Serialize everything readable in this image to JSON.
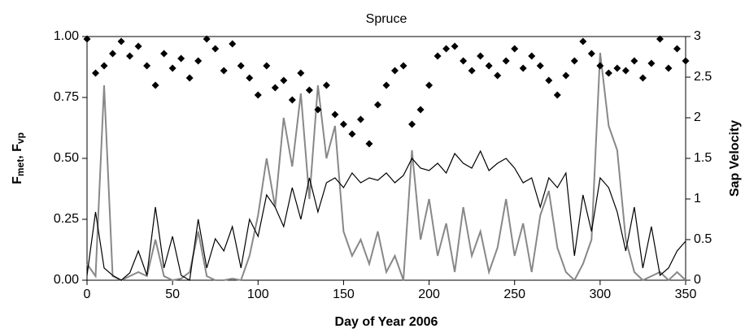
{
  "chart_data": {
    "type": "scatter_line",
    "title": "Spruce",
    "x_label": "Day of Year 2006",
    "y_label_parts": [
      "F",
      "met",
      ", F",
      "vp"
    ],
    "y2_label": "Sap Velocity",
    "xlim": [
      0,
      350
    ],
    "xticks": [
      0,
      50,
      100,
      150,
      200,
      250,
      300,
      350
    ],
    "ylim": [
      0,
      1
    ],
    "yticks": [
      {
        "value": 0,
        "label": "0.00"
      },
      {
        "value": 0.25,
        "label": "0.25"
      },
      {
        "value": 0.5,
        "label": "0.50"
      },
      {
        "value": 0.75,
        "label": "0.75"
      },
      {
        "value": 1,
        "label": "1.00"
      }
    ],
    "y2lim": [
      0,
      3
    ],
    "y2ticks": [
      0,
      0.5,
      1,
      1.5,
      2,
      2.5,
      3
    ],
    "x": [
      0,
      5,
      10,
      15,
      20,
      25,
      30,
      35,
      40,
      45,
      50,
      55,
      60,
      65,
      70,
      75,
      80,
      85,
      90,
      95,
      100,
      105,
      110,
      115,
      120,
      125,
      130,
      135,
      140,
      145,
      150,
      155,
      160,
      165,
      170,
      175,
      180,
      185,
      190,
      195,
      200,
      205,
      210,
      215,
      220,
      225,
      230,
      235,
      240,
      245,
      250,
      255,
      260,
      265,
      270,
      275,
      280,
      285,
      290,
      295,
      300,
      305,
      310,
      315,
      320,
      325,
      330,
      335,
      340,
      345,
      350
    ],
    "series": [
      {
        "kind": "line",
        "color": "#888888",
        "axis": "y2",
        "values": [
          0.2,
          0.05,
          2.4,
          0.05,
          0.0,
          0.05,
          0.1,
          0.05,
          0.5,
          0.05,
          0.0,
          0.02,
          0.1,
          0.6,
          0.05,
          0.0,
          0.0,
          0.02,
          0.0,
          0.3,
          0.8,
          1.5,
          0.9,
          2.0,
          1.4,
          2.3,
          1.0,
          2.4,
          1.5,
          1.9,
          0.6,
          0.3,
          0.5,
          0.2,
          0.6,
          0.1,
          0.3,
          0.0,
          1.6,
          0.5,
          1.0,
          0.3,
          0.7,
          0.1,
          0.9,
          0.3,
          0.6,
          0.1,
          0.4,
          1.0,
          0.3,
          0.7,
          0.1,
          0.8,
          1.1,
          0.4,
          0.1,
          0.0,
          0.2,
          0.5,
          2.8,
          1.9,
          1.6,
          0.5,
          0.1,
          0.0,
          0.05,
          0.1,
          0.0,
          0.1,
          0.0
        ]
      },
      {
        "kind": "line",
        "color": "#000000",
        "values": [
          0.02,
          0.28,
          0.05,
          0.02,
          0.0,
          0.03,
          0.12,
          0.02,
          0.3,
          0.05,
          0.18,
          0.02,
          0.0,
          0.25,
          0.05,
          0.17,
          0.12,
          0.22,
          0.05,
          0.25,
          0.18,
          0.35,
          0.3,
          0.22,
          0.38,
          0.25,
          0.42,
          0.28,
          0.4,
          0.42,
          0.38,
          0.44,
          0.4,
          0.42,
          0.41,
          0.44,
          0.4,
          0.43,
          0.5,
          0.46,
          0.45,
          0.48,
          0.44,
          0.52,
          0.48,
          0.46,
          0.53,
          0.45,
          0.48,
          0.5,
          0.46,
          0.4,
          0.42,
          0.3,
          0.42,
          0.38,
          0.44,
          0.1,
          0.35,
          0.2,
          0.42,
          0.38,
          0.28,
          0.12,
          0.3,
          0.05,
          0.22,
          0.02,
          0.05,
          0.12,
          0.16
        ]
      },
      {
        "kind": "scatter",
        "color": "#000000",
        "values": [
          0.99,
          0.85,
          0.88,
          0.93,
          0.98,
          0.92,
          0.96,
          0.88,
          0.8,
          0.93,
          0.87,
          0.91,
          0.83,
          0.9,
          0.99,
          0.95,
          0.86,
          0.97,
          0.88,
          0.83,
          0.76,
          0.88,
          0.79,
          0.82,
          0.74,
          0.85,
          0.78,
          0.7,
          0.8,
          0.68,
          0.64,
          0.6,
          0.66,
          0.56,
          0.72,
          0.8,
          0.86,
          0.88,
          0.64,
          0.7,
          0.8,
          0.92,
          0.95,
          0.96,
          0.9,
          0.86,
          0.92,
          0.88,
          0.84,
          0.9,
          0.95,
          0.87,
          0.92,
          0.88,
          0.82,
          0.76,
          0.84,
          0.9,
          0.98,
          0.93,
          0.88,
          0.85,
          0.87,
          0.86,
          0.9,
          0.83,
          0.89,
          0.99,
          0.87,
          0.95,
          0.9
        ]
      }
    ]
  }
}
